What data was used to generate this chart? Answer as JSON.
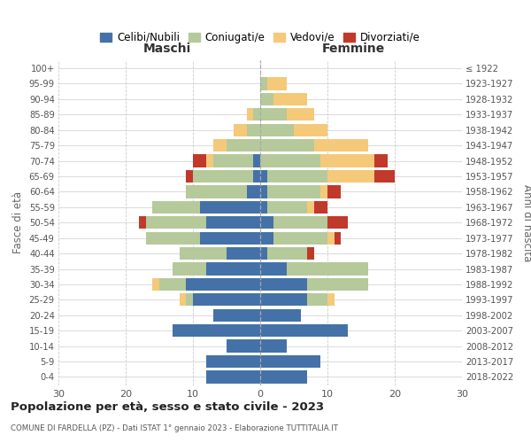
{
  "age_groups": [
    "0-4",
    "5-9",
    "10-14",
    "15-19",
    "20-24",
    "25-29",
    "30-34",
    "35-39",
    "40-44",
    "45-49",
    "50-54",
    "55-59",
    "60-64",
    "65-69",
    "70-74",
    "75-79",
    "80-84",
    "85-89",
    "90-94",
    "95-99",
    "100+"
  ],
  "birth_years": [
    "2018-2022",
    "2013-2017",
    "2008-2012",
    "2003-2007",
    "1998-2002",
    "1993-1997",
    "1988-1992",
    "1983-1987",
    "1978-1982",
    "1973-1977",
    "1968-1972",
    "1963-1967",
    "1958-1962",
    "1953-1957",
    "1948-1952",
    "1943-1947",
    "1938-1942",
    "1933-1937",
    "1928-1932",
    "1923-1927",
    "≤ 1922"
  ],
  "maschi": {
    "celibi": [
      8,
      8,
      5,
      13,
      7,
      10,
      11,
      8,
      5,
      9,
      8,
      9,
      2,
      1,
      1,
      0,
      0,
      0,
      0,
      0,
      0
    ],
    "coniugati": [
      0,
      0,
      0,
      0,
      0,
      1,
      4,
      5,
      7,
      8,
      9,
      7,
      9,
      9,
      6,
      5,
      2,
      1,
      0,
      0,
      0
    ],
    "vedovi": [
      0,
      0,
      0,
      0,
      0,
      1,
      1,
      0,
      0,
      0,
      0,
      0,
      0,
      0,
      1,
      2,
      2,
      1,
      0,
      0,
      0
    ],
    "divorziati": [
      0,
      0,
      0,
      0,
      0,
      0,
      0,
      0,
      0,
      0,
      1,
      0,
      0,
      1,
      2,
      0,
      0,
      0,
      0,
      0,
      0
    ]
  },
  "femmine": {
    "nubili": [
      7,
      9,
      4,
      13,
      6,
      7,
      7,
      4,
      1,
      2,
      2,
      1,
      1,
      1,
      0,
      0,
      0,
      0,
      0,
      0,
      0
    ],
    "coniugate": [
      0,
      0,
      0,
      0,
      0,
      3,
      9,
      12,
      6,
      8,
      8,
      6,
      8,
      9,
      9,
      8,
      5,
      4,
      2,
      1,
      0
    ],
    "vedove": [
      0,
      0,
      0,
      0,
      0,
      1,
      0,
      0,
      0,
      1,
      0,
      1,
      1,
      7,
      8,
      8,
      5,
      4,
      5,
      3,
      0
    ],
    "divorziate": [
      0,
      0,
      0,
      0,
      0,
      0,
      0,
      0,
      1,
      1,
      3,
      2,
      2,
      3,
      2,
      0,
      0,
      0,
      0,
      0,
      0
    ]
  },
  "colors": {
    "celibi": "#4472a8",
    "coniugati": "#b5c99a",
    "vedovi": "#f5c97a",
    "divorziati": "#c0392b"
  },
  "xlim": 30,
  "title": "Popolazione per età, sesso e stato civile - 2023",
  "subtitle": "COMUNE DI FARDELLA (PZ) - Dati ISTAT 1° gennaio 2023 - Elaborazione TUTTITALIA.IT",
  "ylabel_left": "Fasce di età",
  "ylabel_right": "Anni di nascita",
  "xlabel_left": "Maschi",
  "xlabel_right": "Femmine",
  "legend_labels": [
    "Celibi/Nubili",
    "Coniugati/e",
    "Vedovi/e",
    "Divorziati/e"
  ]
}
